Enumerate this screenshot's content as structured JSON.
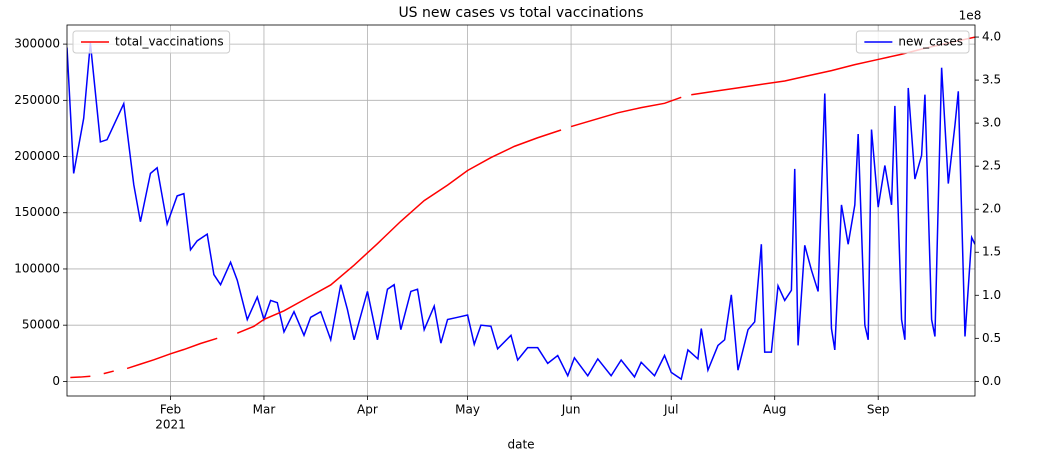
{
  "chart_data": {
    "type": "line",
    "title": "US new cases vs total vaccinations",
    "x_label": "date",
    "x_year_label": "2021",
    "y2_offset_text": "1e8",
    "xlim": [
      "2021-01-01",
      "2021-09-30"
    ],
    "xticks": [
      {
        "value": "2021-02-01",
        "label": "Feb"
      },
      {
        "value": "2021-03-01",
        "label": "Mar"
      },
      {
        "value": "2021-04-01",
        "label": "Apr"
      },
      {
        "value": "2021-05-01",
        "label": "May"
      },
      {
        "value": "2021-06-01",
        "label": "Jun"
      },
      {
        "value": "2021-07-01",
        "label": "Jul"
      },
      {
        "value": "2021-08-01",
        "label": "Aug"
      },
      {
        "value": "2021-09-01",
        "label": "Sep"
      }
    ],
    "ylim": [
      -13000,
      317000
    ],
    "yticks": [
      0,
      50000,
      100000,
      150000,
      200000,
      250000,
      300000
    ],
    "y2lim": [
      -17000000,
      414000000
    ],
    "y2ticks": [
      {
        "value": 0,
        "label": "0.0"
      },
      {
        "value": 50000000,
        "label": "0.5"
      },
      {
        "value": 100000000,
        "label": "1.0"
      },
      {
        "value": 150000000,
        "label": "1.5"
      },
      {
        "value": 200000000,
        "label": "2.0"
      },
      {
        "value": 250000000,
        "label": "2.5"
      },
      {
        "value": 300000000,
        "label": "3.0"
      },
      {
        "value": 350000000,
        "label": "3.5"
      },
      {
        "value": 400000000,
        "label": "4.0"
      }
    ],
    "grid": true,
    "series": [
      {
        "name": "new_cases",
        "color": "#0000ff",
        "axis": "y",
        "legend_loc": "upper right",
        "x": [
          "2021-01-01",
          "2021-01-03",
          "2021-01-06",
          "2021-01-08",
          "2021-01-11",
          "2021-01-13",
          "2021-01-18",
          "2021-01-21",
          "2021-01-23",
          "2021-01-26",
          "2021-01-28",
          "2021-01-31",
          "2021-02-03",
          "2021-02-05",
          "2021-02-07",
          "2021-02-09",
          "2021-02-12",
          "2021-02-14",
          "2021-02-16",
          "2021-02-19",
          "2021-02-21",
          "2021-02-24",
          "2021-02-27",
          "2021-03-01",
          "2021-03-03",
          "2021-03-05",
          "2021-03-07",
          "2021-03-10",
          "2021-03-13",
          "2021-03-15",
          "2021-03-18",
          "2021-03-21",
          "2021-03-24",
          "2021-03-26",
          "2021-03-28",
          "2021-04-01",
          "2021-04-04",
          "2021-04-07",
          "2021-04-09",
          "2021-04-11",
          "2021-04-14",
          "2021-04-16",
          "2021-04-18",
          "2021-04-21",
          "2021-04-23",
          "2021-04-25",
          "2021-04-28",
          "2021-05-01",
          "2021-05-03",
          "2021-05-05",
          "2021-05-08",
          "2021-05-10",
          "2021-05-14",
          "2021-05-16",
          "2021-05-19",
          "2021-05-22",
          "2021-05-25",
          "2021-05-28",
          "2021-05-31",
          "2021-06-02",
          "2021-06-06",
          "2021-06-09",
          "2021-06-13",
          "2021-06-16",
          "2021-06-20",
          "2021-06-22",
          "2021-06-26",
          "2021-06-29",
          "2021-07-01",
          "2021-07-04",
          "2021-07-06",
          "2021-07-09",
          "2021-07-10",
          "2021-07-12",
          "2021-07-15",
          "2021-07-17",
          "2021-07-19",
          "2021-07-21",
          "2021-07-24",
          "2021-07-26",
          "2021-07-28",
          "2021-07-29",
          "2021-07-31",
          "2021-08-02",
          "2021-08-04",
          "2021-08-06",
          "2021-08-07",
          "2021-08-08",
          "2021-08-10",
          "2021-08-12",
          "2021-08-14",
          "2021-08-16",
          "2021-08-18",
          "2021-08-19",
          "2021-08-21",
          "2021-08-23",
          "2021-08-25",
          "2021-08-26",
          "2021-08-28",
          "2021-08-29",
          "2021-08-30",
          "2021-09-01",
          "2021-09-03",
          "2021-09-05",
          "2021-09-06",
          "2021-09-08",
          "2021-09-09",
          "2021-09-10",
          "2021-09-12",
          "2021-09-14",
          "2021-09-15",
          "2021-09-17",
          "2021-09-18",
          "2021-09-20",
          "2021-09-22",
          "2021-09-24",
          "2021-09-25",
          "2021-09-27",
          "2021-09-29",
          "2021-09-30"
        ],
        "values": [
          297000,
          185000,
          234000,
          301000,
          213000,
          215000,
          247000,
          175000,
          142000,
          185000,
          190000,
          140000,
          165000,
          167000,
          117000,
          125000,
          131000,
          95000,
          86000,
          106000,
          90000,
          55000,
          75000,
          55000,
          72000,
          70000,
          44000,
          62000,
          41000,
          57000,
          62000,
          37000,
          86000,
          64000,
          37000,
          80000,
          37000,
          82000,
          86000,
          46000,
          80000,
          82000,
          46000,
          67000,
          34000,
          55000,
          57000,
          59000,
          33000,
          50000,
          49000,
          29000,
          41000,
          19000,
          30000,
          30000,
          16000,
          23000,
          5000,
          21000,
          5000,
          20000,
          5000,
          19000,
          4000,
          17000,
          5000,
          23000,
          8000,
          2000,
          28000,
          20000,
          47000,
          10000,
          32000,
          37000,
          77000,
          10000,
          46000,
          53000,
          122000,
          26000,
          26000,
          85000,
          72000,
          81000,
          189000,
          32000,
          121000,
          99000,
          80000,
          256000,
          47000,
          28000,
          157000,
          122000,
          157000,
          220000,
          50000,
          37000,
          224000,
          155000,
          192000,
          157000,
          245000,
          55000,
          37000,
          261000,
          180000,
          201000,
          255000,
          55000,
          40000,
          279000,
          176000,
          228000,
          258000,
          40000,
          128000,
          122000
        ]
      },
      {
        "name": "total_vaccinations",
        "color": "#ff0000",
        "axis": "y2",
        "legend_loc": "upper left",
        "x": [
          "2021-01-02",
          "2021-01-05",
          "2021-01-08",
          "2021-01-10",
          "2021-01-12",
          "2021-01-15",
          "2021-01-17",
          "2021-01-19",
          "2021-01-23",
          "2021-01-27",
          "2021-02-01",
          "2021-02-05",
          "2021-02-10",
          "2021-02-15",
          "2021-02-19",
          "2021-02-21",
          "2021-02-26",
          "2021-03-01",
          "2021-03-07",
          "2021-03-14",
          "2021-03-21",
          "2021-03-28",
          "2021-04-04",
          "2021-04-11",
          "2021-04-18",
          "2021-04-25",
          "2021-05-01",
          "2021-05-08",
          "2021-05-15",
          "2021-05-22",
          "2021-05-29",
          "2021-05-30",
          "2021-06-01",
          "2021-06-08",
          "2021-06-15",
          "2021-06-22",
          "2021-06-29",
          "2021-07-04",
          "2021-07-05",
          "2021-07-07",
          "2021-07-14",
          "2021-07-21",
          "2021-07-28",
          "2021-08-04",
          "2021-08-11",
          "2021-08-18",
          "2021-08-25",
          "2021-09-01",
          "2021-09-08",
          "2021-09-15",
          "2021-09-22",
          "2021-09-30"
        ],
        "values": [
          4500000,
          5000000,
          6000000,
          null,
          9000000,
          12000000,
          null,
          15000000,
          20000000,
          25000000,
          32000000,
          37000000,
          44000000,
          50000000,
          null,
          56000000,
          64000000,
          72000000,
          82000000,
          97000000,
          112000000,
          135000000,
          160000000,
          186000000,
          210000000,
          228000000,
          245000000,
          260000000,
          273000000,
          283000000,
          292000000,
          null,
          296000000,
          304000000,
          312000000,
          318000000,
          323000000,
          330000000,
          null,
          333000000,
          337000000,
          341000000,
          345000000,
          349000000,
          355000000,
          361000000,
          368000000,
          374000000,
          380000000,
          387000000,
          393000000,
          400000000
        ]
      }
    ]
  }
}
